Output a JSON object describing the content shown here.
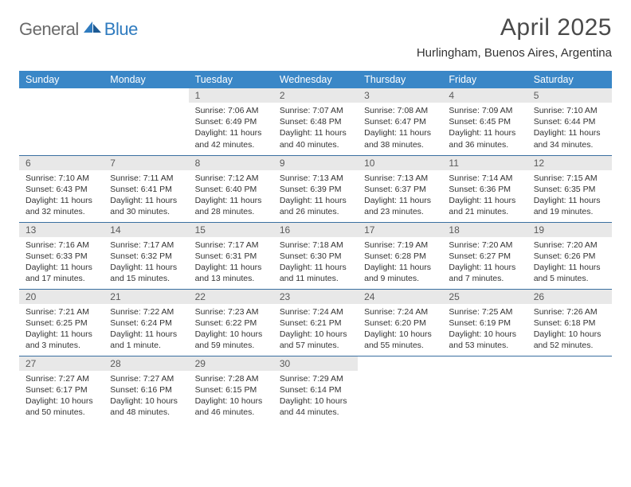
{
  "logo": {
    "general": "General",
    "blue": "Blue"
  },
  "title": "April 2025",
  "location": "Hurlingham, Buenos Aires, Argentina",
  "header_bg": "#3a87c7",
  "header_fg": "#ffffff",
  "daynum_bg": "#e8e8e8",
  "row_border": "#3a6fa0",
  "weekdays": [
    "Sunday",
    "Monday",
    "Tuesday",
    "Wednesday",
    "Thursday",
    "Friday",
    "Saturday"
  ],
  "weeks": [
    [
      {
        "n": "",
        "sr": "",
        "ss": "",
        "dl": ""
      },
      {
        "n": "",
        "sr": "",
        "ss": "",
        "dl": ""
      },
      {
        "n": "1",
        "sr": "Sunrise: 7:06 AM",
        "ss": "Sunset: 6:49 PM",
        "dl": "Daylight: 11 hours and 42 minutes."
      },
      {
        "n": "2",
        "sr": "Sunrise: 7:07 AM",
        "ss": "Sunset: 6:48 PM",
        "dl": "Daylight: 11 hours and 40 minutes."
      },
      {
        "n": "3",
        "sr": "Sunrise: 7:08 AM",
        "ss": "Sunset: 6:47 PM",
        "dl": "Daylight: 11 hours and 38 minutes."
      },
      {
        "n": "4",
        "sr": "Sunrise: 7:09 AM",
        "ss": "Sunset: 6:45 PM",
        "dl": "Daylight: 11 hours and 36 minutes."
      },
      {
        "n": "5",
        "sr": "Sunrise: 7:10 AM",
        "ss": "Sunset: 6:44 PM",
        "dl": "Daylight: 11 hours and 34 minutes."
      }
    ],
    [
      {
        "n": "6",
        "sr": "Sunrise: 7:10 AM",
        "ss": "Sunset: 6:43 PM",
        "dl": "Daylight: 11 hours and 32 minutes."
      },
      {
        "n": "7",
        "sr": "Sunrise: 7:11 AM",
        "ss": "Sunset: 6:41 PM",
        "dl": "Daylight: 11 hours and 30 minutes."
      },
      {
        "n": "8",
        "sr": "Sunrise: 7:12 AM",
        "ss": "Sunset: 6:40 PM",
        "dl": "Daylight: 11 hours and 28 minutes."
      },
      {
        "n": "9",
        "sr": "Sunrise: 7:13 AM",
        "ss": "Sunset: 6:39 PM",
        "dl": "Daylight: 11 hours and 26 minutes."
      },
      {
        "n": "10",
        "sr": "Sunrise: 7:13 AM",
        "ss": "Sunset: 6:37 PM",
        "dl": "Daylight: 11 hours and 23 minutes."
      },
      {
        "n": "11",
        "sr": "Sunrise: 7:14 AM",
        "ss": "Sunset: 6:36 PM",
        "dl": "Daylight: 11 hours and 21 minutes."
      },
      {
        "n": "12",
        "sr": "Sunrise: 7:15 AM",
        "ss": "Sunset: 6:35 PM",
        "dl": "Daylight: 11 hours and 19 minutes."
      }
    ],
    [
      {
        "n": "13",
        "sr": "Sunrise: 7:16 AM",
        "ss": "Sunset: 6:33 PM",
        "dl": "Daylight: 11 hours and 17 minutes."
      },
      {
        "n": "14",
        "sr": "Sunrise: 7:17 AM",
        "ss": "Sunset: 6:32 PM",
        "dl": "Daylight: 11 hours and 15 minutes."
      },
      {
        "n": "15",
        "sr": "Sunrise: 7:17 AM",
        "ss": "Sunset: 6:31 PM",
        "dl": "Daylight: 11 hours and 13 minutes."
      },
      {
        "n": "16",
        "sr": "Sunrise: 7:18 AM",
        "ss": "Sunset: 6:30 PM",
        "dl": "Daylight: 11 hours and 11 minutes."
      },
      {
        "n": "17",
        "sr": "Sunrise: 7:19 AM",
        "ss": "Sunset: 6:28 PM",
        "dl": "Daylight: 11 hours and 9 minutes."
      },
      {
        "n": "18",
        "sr": "Sunrise: 7:20 AM",
        "ss": "Sunset: 6:27 PM",
        "dl": "Daylight: 11 hours and 7 minutes."
      },
      {
        "n": "19",
        "sr": "Sunrise: 7:20 AM",
        "ss": "Sunset: 6:26 PM",
        "dl": "Daylight: 11 hours and 5 minutes."
      }
    ],
    [
      {
        "n": "20",
        "sr": "Sunrise: 7:21 AM",
        "ss": "Sunset: 6:25 PM",
        "dl": "Daylight: 11 hours and 3 minutes."
      },
      {
        "n": "21",
        "sr": "Sunrise: 7:22 AM",
        "ss": "Sunset: 6:24 PM",
        "dl": "Daylight: 11 hours and 1 minute."
      },
      {
        "n": "22",
        "sr": "Sunrise: 7:23 AM",
        "ss": "Sunset: 6:22 PM",
        "dl": "Daylight: 10 hours and 59 minutes."
      },
      {
        "n": "23",
        "sr": "Sunrise: 7:24 AM",
        "ss": "Sunset: 6:21 PM",
        "dl": "Daylight: 10 hours and 57 minutes."
      },
      {
        "n": "24",
        "sr": "Sunrise: 7:24 AM",
        "ss": "Sunset: 6:20 PM",
        "dl": "Daylight: 10 hours and 55 minutes."
      },
      {
        "n": "25",
        "sr": "Sunrise: 7:25 AM",
        "ss": "Sunset: 6:19 PM",
        "dl": "Daylight: 10 hours and 53 minutes."
      },
      {
        "n": "26",
        "sr": "Sunrise: 7:26 AM",
        "ss": "Sunset: 6:18 PM",
        "dl": "Daylight: 10 hours and 52 minutes."
      }
    ],
    [
      {
        "n": "27",
        "sr": "Sunrise: 7:27 AM",
        "ss": "Sunset: 6:17 PM",
        "dl": "Daylight: 10 hours and 50 minutes."
      },
      {
        "n": "28",
        "sr": "Sunrise: 7:27 AM",
        "ss": "Sunset: 6:16 PM",
        "dl": "Daylight: 10 hours and 48 minutes."
      },
      {
        "n": "29",
        "sr": "Sunrise: 7:28 AM",
        "ss": "Sunset: 6:15 PM",
        "dl": "Daylight: 10 hours and 46 minutes."
      },
      {
        "n": "30",
        "sr": "Sunrise: 7:29 AM",
        "ss": "Sunset: 6:14 PM",
        "dl": "Daylight: 10 hours and 44 minutes."
      },
      {
        "n": "",
        "sr": "",
        "ss": "",
        "dl": ""
      },
      {
        "n": "",
        "sr": "",
        "ss": "",
        "dl": ""
      },
      {
        "n": "",
        "sr": "",
        "ss": "",
        "dl": ""
      }
    ]
  ]
}
